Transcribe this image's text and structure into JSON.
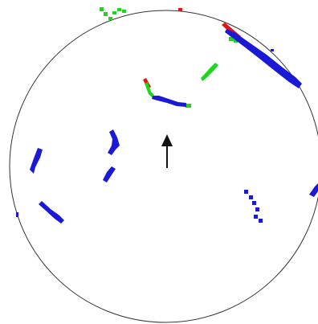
{
  "colors": {
    "background": "#ffffff",
    "circle": "#333333",
    "arrow": "#111111",
    "blue": "#1a1ad6",
    "green": "#1ed61e",
    "red": "#e01515"
  },
  "icons": {
    "arrow": "up-arrow-icon"
  }
}
